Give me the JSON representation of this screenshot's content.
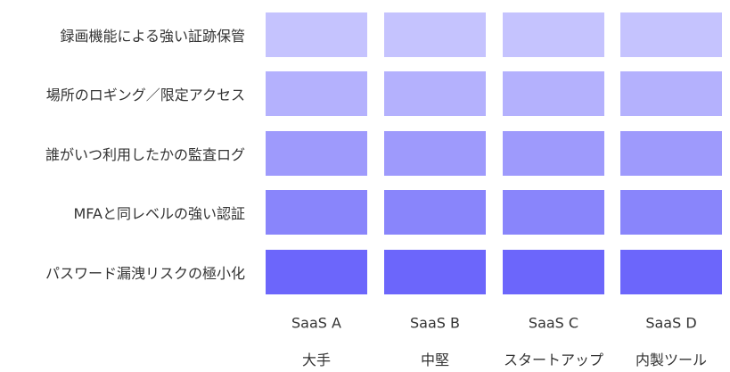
{
  "rows": [
    {
      "label": "録画機能による強い証跡保管",
      "color": "#c5c3fe"
    },
    {
      "label": "場所のロギング／限定アクセス",
      "color": "#b4b1fd"
    },
    {
      "label": "誰がいつ利用したかの監査ログ",
      "color": "#9e9afc"
    },
    {
      "label": "MFAと同レベルの強い認証",
      "color": "#8985fb"
    },
    {
      "label": "パスワード漏洩リスクの極小化",
      "color": "#6c66fb"
    }
  ],
  "columns": [
    {
      "name": "SaaS A",
      "kind": "大手"
    },
    {
      "name": "SaaS B",
      "kind": "中堅"
    },
    {
      "name": "SaaS C",
      "kind": "スタートアップ"
    },
    {
      "name": "SaaS D",
      "kind": "内製ツール"
    }
  ]
}
